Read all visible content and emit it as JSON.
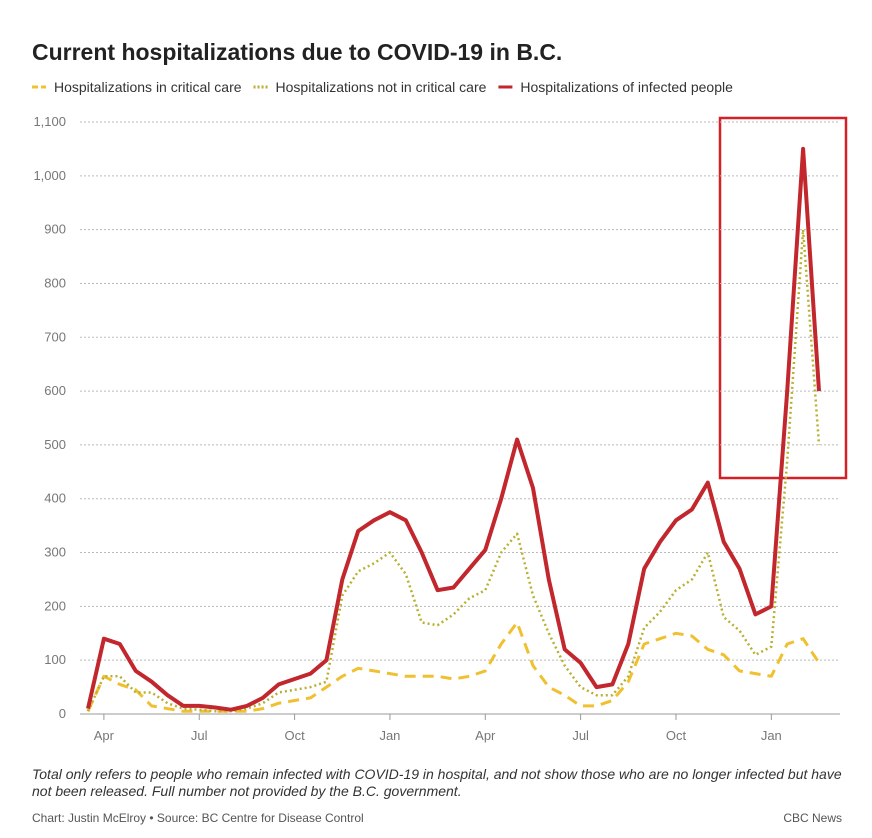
{
  "chart_data": {
    "type": "line",
    "title": "Current hospitalizations due to COVID-19 in B.C.",
    "note": "Total only refers to people who remain infected with COVID-19 in hospital, and not show those who are no longer infected but have not been released. Full number not provided by the B.C. government.",
    "credit": "Chart: Justin McElroy • Source: BC Centre for Disease Control",
    "publisher": "CBC News",
    "categories": [
      null,
      "Apr",
      null,
      null,
      null,
      null,
      null,
      "Jul",
      null,
      null,
      null,
      null,
      null,
      "Oct",
      null,
      null,
      null,
      null,
      null,
      "Jan",
      null,
      null,
      null,
      null,
      null,
      "Apr",
      null,
      null,
      null,
      null,
      null,
      "Jul",
      null,
      null,
      null,
      null,
      null,
      "Oct",
      null,
      null,
      null,
      null,
      null,
      "Jan",
      null,
      null,
      null
    ],
    "series": [
      {
        "name": "Hospitalizations in critical care",
        "color": "#f0c030",
        "style": "dashed",
        "values": [
          5,
          70,
          55,
          45,
          15,
          10,
          5,
          5,
          5,
          5,
          5,
          10,
          20,
          25,
          30,
          50,
          70,
          85,
          80,
          75,
          70,
          70,
          70,
          65,
          70,
          80,
          130,
          170,
          90,
          50,
          35,
          15,
          15,
          25,
          60,
          130,
          140,
          150,
          145,
          120,
          110,
          80,
          75,
          70,
          130,
          140,
          95
        ]
      },
      {
        "name": "Hospitalizations not in critical care",
        "color": "#b8b030",
        "style": "dotted",
        "values": [
          5,
          70,
          70,
          40,
          40,
          20,
          10,
          8,
          5,
          5,
          10,
          20,
          40,
          45,
          50,
          60,
          220,
          265,
          280,
          300,
          260,
          170,
          165,
          185,
          215,
          230,
          300,
          335,
          220,
          150,
          90,
          50,
          35,
          35,
          70,
          160,
          190,
          230,
          250,
          300,
          180,
          155,
          110,
          125,
          470,
          900,
          500
        ]
      },
      {
        "name": "Hospitalizations of infected people",
        "color": "#c1272d",
        "style": "solid",
        "values": [
          10,
          140,
          130,
          80,
          60,
          35,
          15,
          15,
          12,
          8,
          15,
          30,
          55,
          65,
          75,
          100,
          250,
          340,
          360,
          375,
          360,
          300,
          230,
          235,
          270,
          305,
          400,
          510,
          420,
          250,
          120,
          95,
          50,
          55,
          130,
          270,
          320,
          360,
          380,
          430,
          320,
          270,
          185,
          200,
          600,
          1050,
          600
        ]
      }
    ],
    "ylim": [
      0,
      1100
    ],
    "yticks": [
      0,
      100,
      200,
      300,
      400,
      500,
      600,
      700,
      800,
      900,
      {
        "value": 1000,
        "label": "1,000"
      },
      {
        "value": 1100,
        "label": "1,100"
      }
    ],
    "grid": true
  }
}
